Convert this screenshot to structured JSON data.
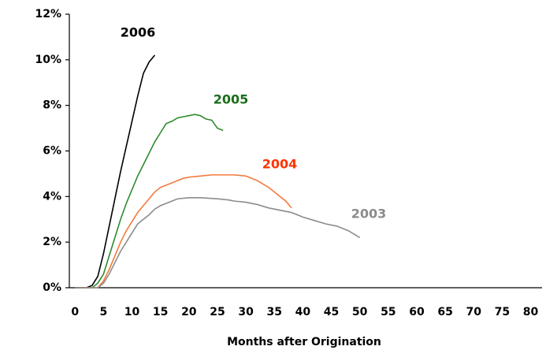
{
  "chart_data": {
    "type": "line",
    "xlabel": "Months after Origination",
    "xlim": [
      -1,
      82
    ],
    "xticks": [
      0,
      5,
      10,
      15,
      20,
      25,
      30,
      35,
      40,
      45,
      50,
      55,
      60,
      65,
      70,
      75,
      80
    ],
    "ylim": [
      0,
      12
    ],
    "yticks": [
      {
        "value": 0,
        "label": "0%"
      },
      {
        "value": 2,
        "label": "2%"
      },
      {
        "value": 4,
        "label": "4%"
      },
      {
        "value": 6,
        "label": "6%"
      },
      {
        "value": 8,
        "label": "8%"
      },
      {
        "value": 10,
        "label": "10%"
      },
      {
        "value": 12,
        "label": "12%"
      }
    ],
    "grid": false,
    "series": [
      {
        "name": "2006",
        "color": "#000000",
        "x": [
          0,
          1,
          2,
          3,
          4,
          5,
          6,
          7,
          8,
          9,
          10,
          11,
          12,
          13,
          14
        ],
        "values": [
          0,
          0,
          0,
          0.1,
          0.5,
          1.5,
          2.7,
          3.9,
          5.1,
          6.2,
          7.3,
          8.4,
          9.4,
          9.9,
          10.2
        ]
      },
      {
        "name": "2005",
        "color": "#2e8b2e",
        "x": [
          0,
          1,
          2,
          3,
          4,
          5,
          6,
          7,
          8,
          9,
          10,
          11,
          12,
          13,
          14,
          15,
          16,
          17,
          18,
          19,
          20,
          21,
          22,
          23,
          24,
          25,
          26
        ],
        "values": [
          0,
          0,
          0,
          0,
          0.2,
          0.6,
          1.4,
          2.2,
          3.0,
          3.7,
          4.3,
          4.9,
          5.4,
          5.9,
          6.4,
          6.8,
          7.2,
          7.3,
          7.45,
          7.5,
          7.55,
          7.6,
          7.55,
          7.4,
          7.35,
          7.0,
          6.9
        ]
      },
      {
        "name": "2004",
        "color": "#f47a3a",
        "x": [
          0,
          1,
          2,
          3,
          4,
          5,
          6,
          7,
          8,
          9,
          10,
          11,
          12,
          13,
          14,
          15,
          16,
          17,
          18,
          19,
          20,
          22,
          24,
          26,
          28,
          30,
          32,
          34,
          36,
          37,
          38
        ],
        "values": [
          0,
          0,
          0,
          0,
          0,
          0.3,
          0.8,
          1.4,
          2.0,
          2.5,
          2.9,
          3.3,
          3.6,
          3.9,
          4.2,
          4.4,
          4.5,
          4.6,
          4.7,
          4.8,
          4.85,
          4.9,
          4.95,
          4.95,
          4.95,
          4.9,
          4.7,
          4.4,
          4.0,
          3.8,
          3.5
        ]
      },
      {
        "name": "2003",
        "color": "#8c8c8c",
        "x": [
          0,
          1,
          2,
          3,
          4,
          5,
          6,
          7,
          8,
          9,
          10,
          11,
          12,
          13,
          14,
          15,
          16,
          17,
          18,
          20,
          22,
          25,
          27,
          28,
          30,
          32,
          34,
          36,
          38,
          40,
          42,
          44,
          46,
          48,
          50
        ],
        "values": [
          0,
          0,
          0,
          0,
          0,
          0.2,
          0.6,
          1.1,
          1.6,
          2.0,
          2.4,
          2.8,
          3.0,
          3.2,
          3.45,
          3.6,
          3.7,
          3.8,
          3.9,
          3.95,
          3.95,
          3.9,
          3.85,
          3.8,
          3.75,
          3.65,
          3.5,
          3.4,
          3.3,
          3.1,
          2.95,
          2.8,
          2.7,
          2.5,
          2.2
        ]
      }
    ]
  }
}
